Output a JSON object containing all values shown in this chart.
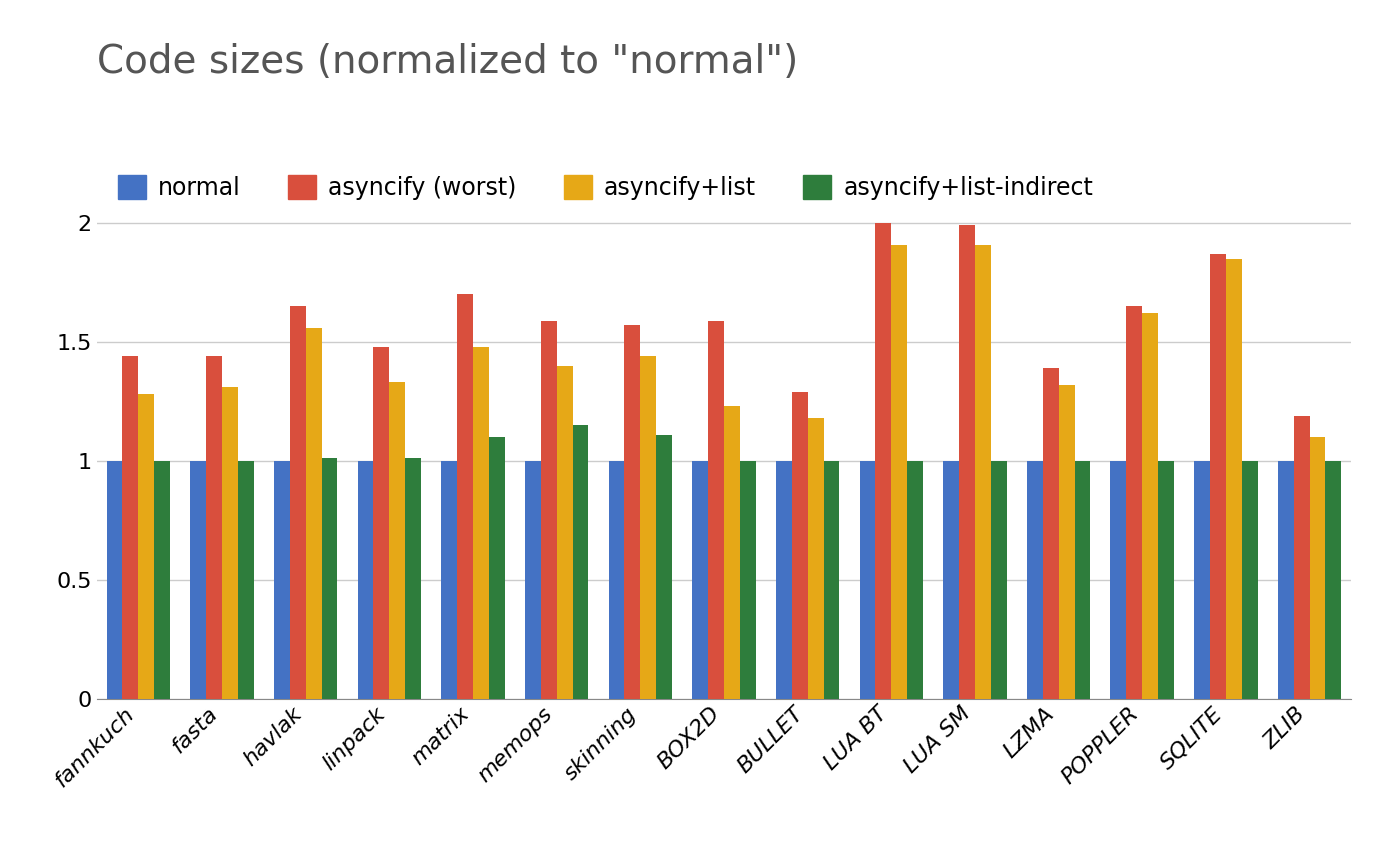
{
  "title": "Code sizes (normalized to \"normal\")",
  "categories": [
    "fannkuch",
    "fasta",
    "havlak",
    "linpack",
    "matrix",
    "memops",
    "skinning",
    "BOX2D",
    "BULLET",
    "LUA BT",
    "LUA SM",
    "LZMA",
    "POPPLER",
    "SQLITE",
    "ZLIB"
  ],
  "series": {
    "normal": [
      1.0,
      1.0,
      1.0,
      1.0,
      1.0,
      1.0,
      1.0,
      1.0,
      1.0,
      1.0,
      1.0,
      1.0,
      1.0,
      1.0,
      1.0
    ],
    "asyncify (worst)": [
      1.44,
      1.44,
      1.65,
      1.48,
      1.7,
      1.59,
      1.57,
      1.59,
      1.29,
      2.0,
      1.99,
      1.39,
      1.65,
      1.87,
      1.19
    ],
    "asyncify+list": [
      1.28,
      1.31,
      1.56,
      1.33,
      1.48,
      1.4,
      1.44,
      1.23,
      1.18,
      1.91,
      1.91,
      1.32,
      1.62,
      1.85,
      1.1
    ],
    "asyncify+list-indirect": [
      1.0,
      1.0,
      1.01,
      1.01,
      1.1,
      1.15,
      1.11,
      1.0,
      1.0,
      1.0,
      1.0,
      1.0,
      1.0,
      1.0,
      1.0
    ]
  },
  "colors": {
    "normal": "#4472C4",
    "asyncify (worst)": "#D94F3D",
    "asyncify+list": "#E6A817",
    "asyncify+list-indirect": "#2E7D3C"
  },
  "ylim": [
    0,
    2.15
  ],
  "yticks": [
    0,
    0.5,
    1.0,
    1.5,
    2.0
  ],
  "background_color": "#ffffff",
  "grid_color": "#cccccc",
  "title_fontsize": 28,
  "tick_fontsize": 16,
  "legend_fontsize": 17,
  "bar_width": 0.19
}
